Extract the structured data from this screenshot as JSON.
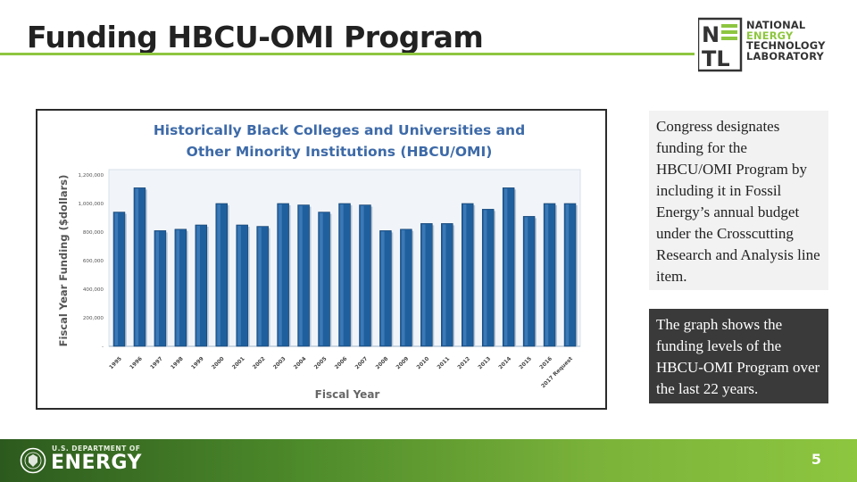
{
  "slide": {
    "title": "Funding HBCU-OMI Program",
    "page_number": "5"
  },
  "logo": {
    "lines": [
      "NATIONAL",
      "ENERGY",
      "TECHNOLOGY",
      "LABORATORY"
    ],
    "mark": "NETL"
  },
  "textboxes": {
    "note": "Congress designates funding for the HBCU/OMI Program by including it in Fossil Energy’s annual budget under the Crosscutting Research and Analysis line item.",
    "summary": "The graph shows the funding levels of the HBCU-OMI Program over the last 22 years."
  },
  "footer": {
    "dept_small": "U.S. DEPARTMENT OF",
    "dept_big": "ENERGY"
  },
  "colors": {
    "accent_green": "#8dc63f",
    "bar_blue": "#1f5f9e",
    "title_blue": "#3d6aa8"
  },
  "chart_data": {
    "type": "bar",
    "title_lines": [
      "Historically Black Colleges and Universities and",
      "Other Minority Institutions (HBCU/OMI)"
    ],
    "xlabel": "Fiscal Year",
    "ylabel": "Fiscal Year Funding ($dollars)",
    "categories": [
      "1995",
      "1996",
      "1997",
      "1998",
      "1999",
      "2000",
      "2001",
      "2002",
      "2003",
      "2004",
      "2005",
      "2006",
      "2007",
      "2008",
      "2009",
      "2010",
      "2011",
      "2012",
      "2013",
      "2014",
      "2015",
      "2016",
      "2017 Request"
    ],
    "values": [
      940000,
      1110000,
      810000,
      820000,
      850000,
      1000000,
      850000,
      840000,
      1000000,
      990000,
      940000,
      1000000,
      990000,
      810000,
      820000,
      860000,
      860000,
      1000000,
      960000,
      1110000,
      910000,
      1000000,
      1000000
    ],
    "y_ticks": [
      "-",
      "200,000",
      "400,000",
      "600,000",
      "800,000",
      "1,000,000",
      "1,200,000"
    ],
    "ylim": [
      0,
      1200000
    ],
    "grid": false,
    "legend": "none"
  }
}
